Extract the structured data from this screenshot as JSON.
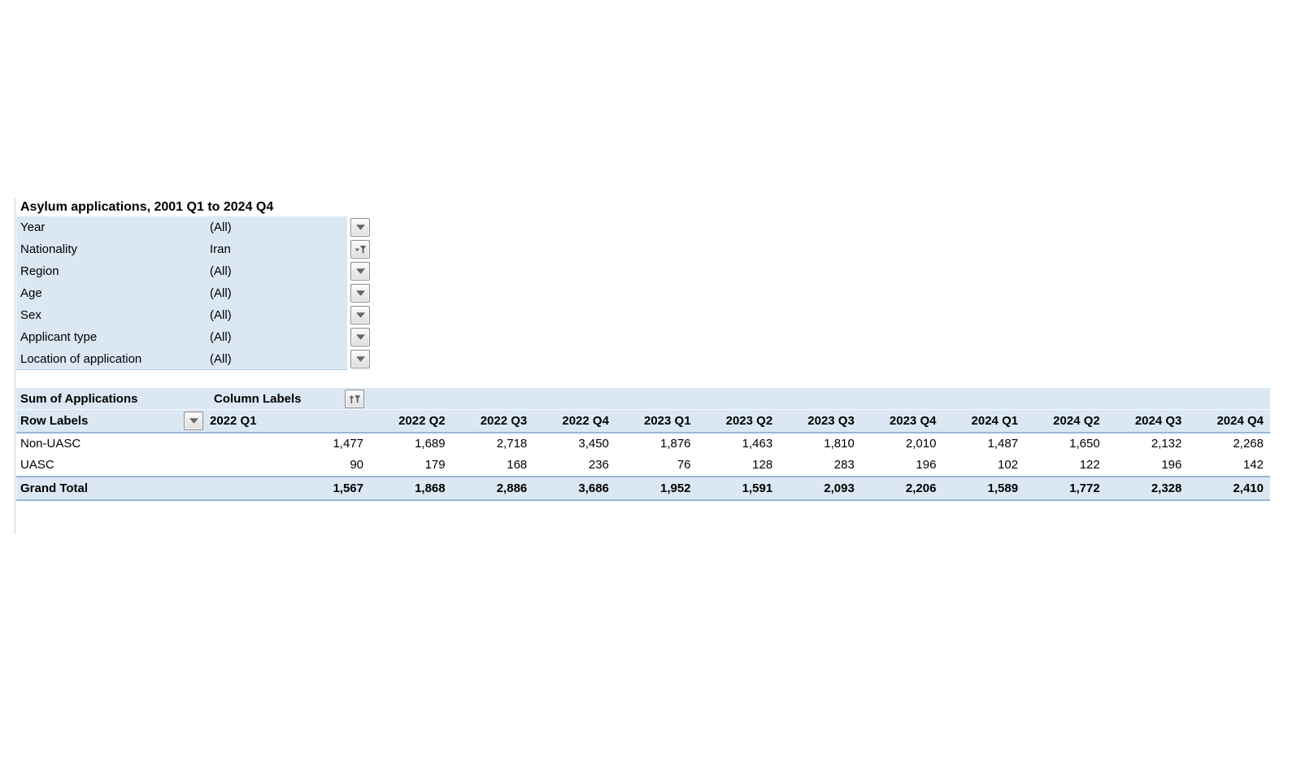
{
  "title": "Asylum applications, 2001 Q1 to 2024 Q4",
  "filters": [
    {
      "label": "Year",
      "value": "(All)",
      "icon": "dropdown"
    },
    {
      "label": "Nationality",
      "value": "Iran",
      "icon": "filtered-dropdown"
    },
    {
      "label": "Region",
      "value": "(All)",
      "icon": "dropdown"
    },
    {
      "label": "Age",
      "value": "(All)",
      "icon": "dropdown"
    },
    {
      "label": "Sex",
      "value": "(All)",
      "icon": "dropdown"
    },
    {
      "label": "Applicant type",
      "value": "(All)",
      "icon": "dropdown"
    },
    {
      "label": "Location of application",
      "value": "(All)",
      "icon": "dropdown"
    }
  ],
  "pivot": {
    "measure_label": "Sum of Applications",
    "column_labels_label": "Column Labels",
    "row_labels_label": "Row Labels",
    "columns": [
      "2022 Q1",
      "2022 Q2",
      "2022 Q3",
      "2022 Q4",
      "2023 Q1",
      "2023 Q2",
      "2023 Q3",
      "2023 Q4",
      "2024 Q1",
      "2024 Q2",
      "2024 Q3",
      "2024 Q4"
    ],
    "rows": [
      {
        "label": "Non-UASC",
        "values": [
          "1,477",
          "1,689",
          "2,718",
          "3,450",
          "1,876",
          "1,463",
          "1,810",
          "2,010",
          "1,487",
          "1,650",
          "2,132",
          "2,268"
        ]
      },
      {
        "label": "UASC",
        "values": [
          "90",
          "179",
          "168",
          "236",
          "76",
          "128",
          "283",
          "196",
          "102",
          "122",
          "196",
          "142"
        ]
      }
    ],
    "grand_total": {
      "label": "Grand Total",
      "values": [
        "1,567",
        "1,868",
        "2,886",
        "3,686",
        "1,952",
        "1,591",
        "2,093",
        "2,206",
        "1,589",
        "1,772",
        "2,328",
        "2,410"
      ]
    }
  },
  "colors": {
    "header_fill": "#dbe8f4",
    "band_border": "#96b7d7",
    "gridline": "#cfcfcf"
  }
}
